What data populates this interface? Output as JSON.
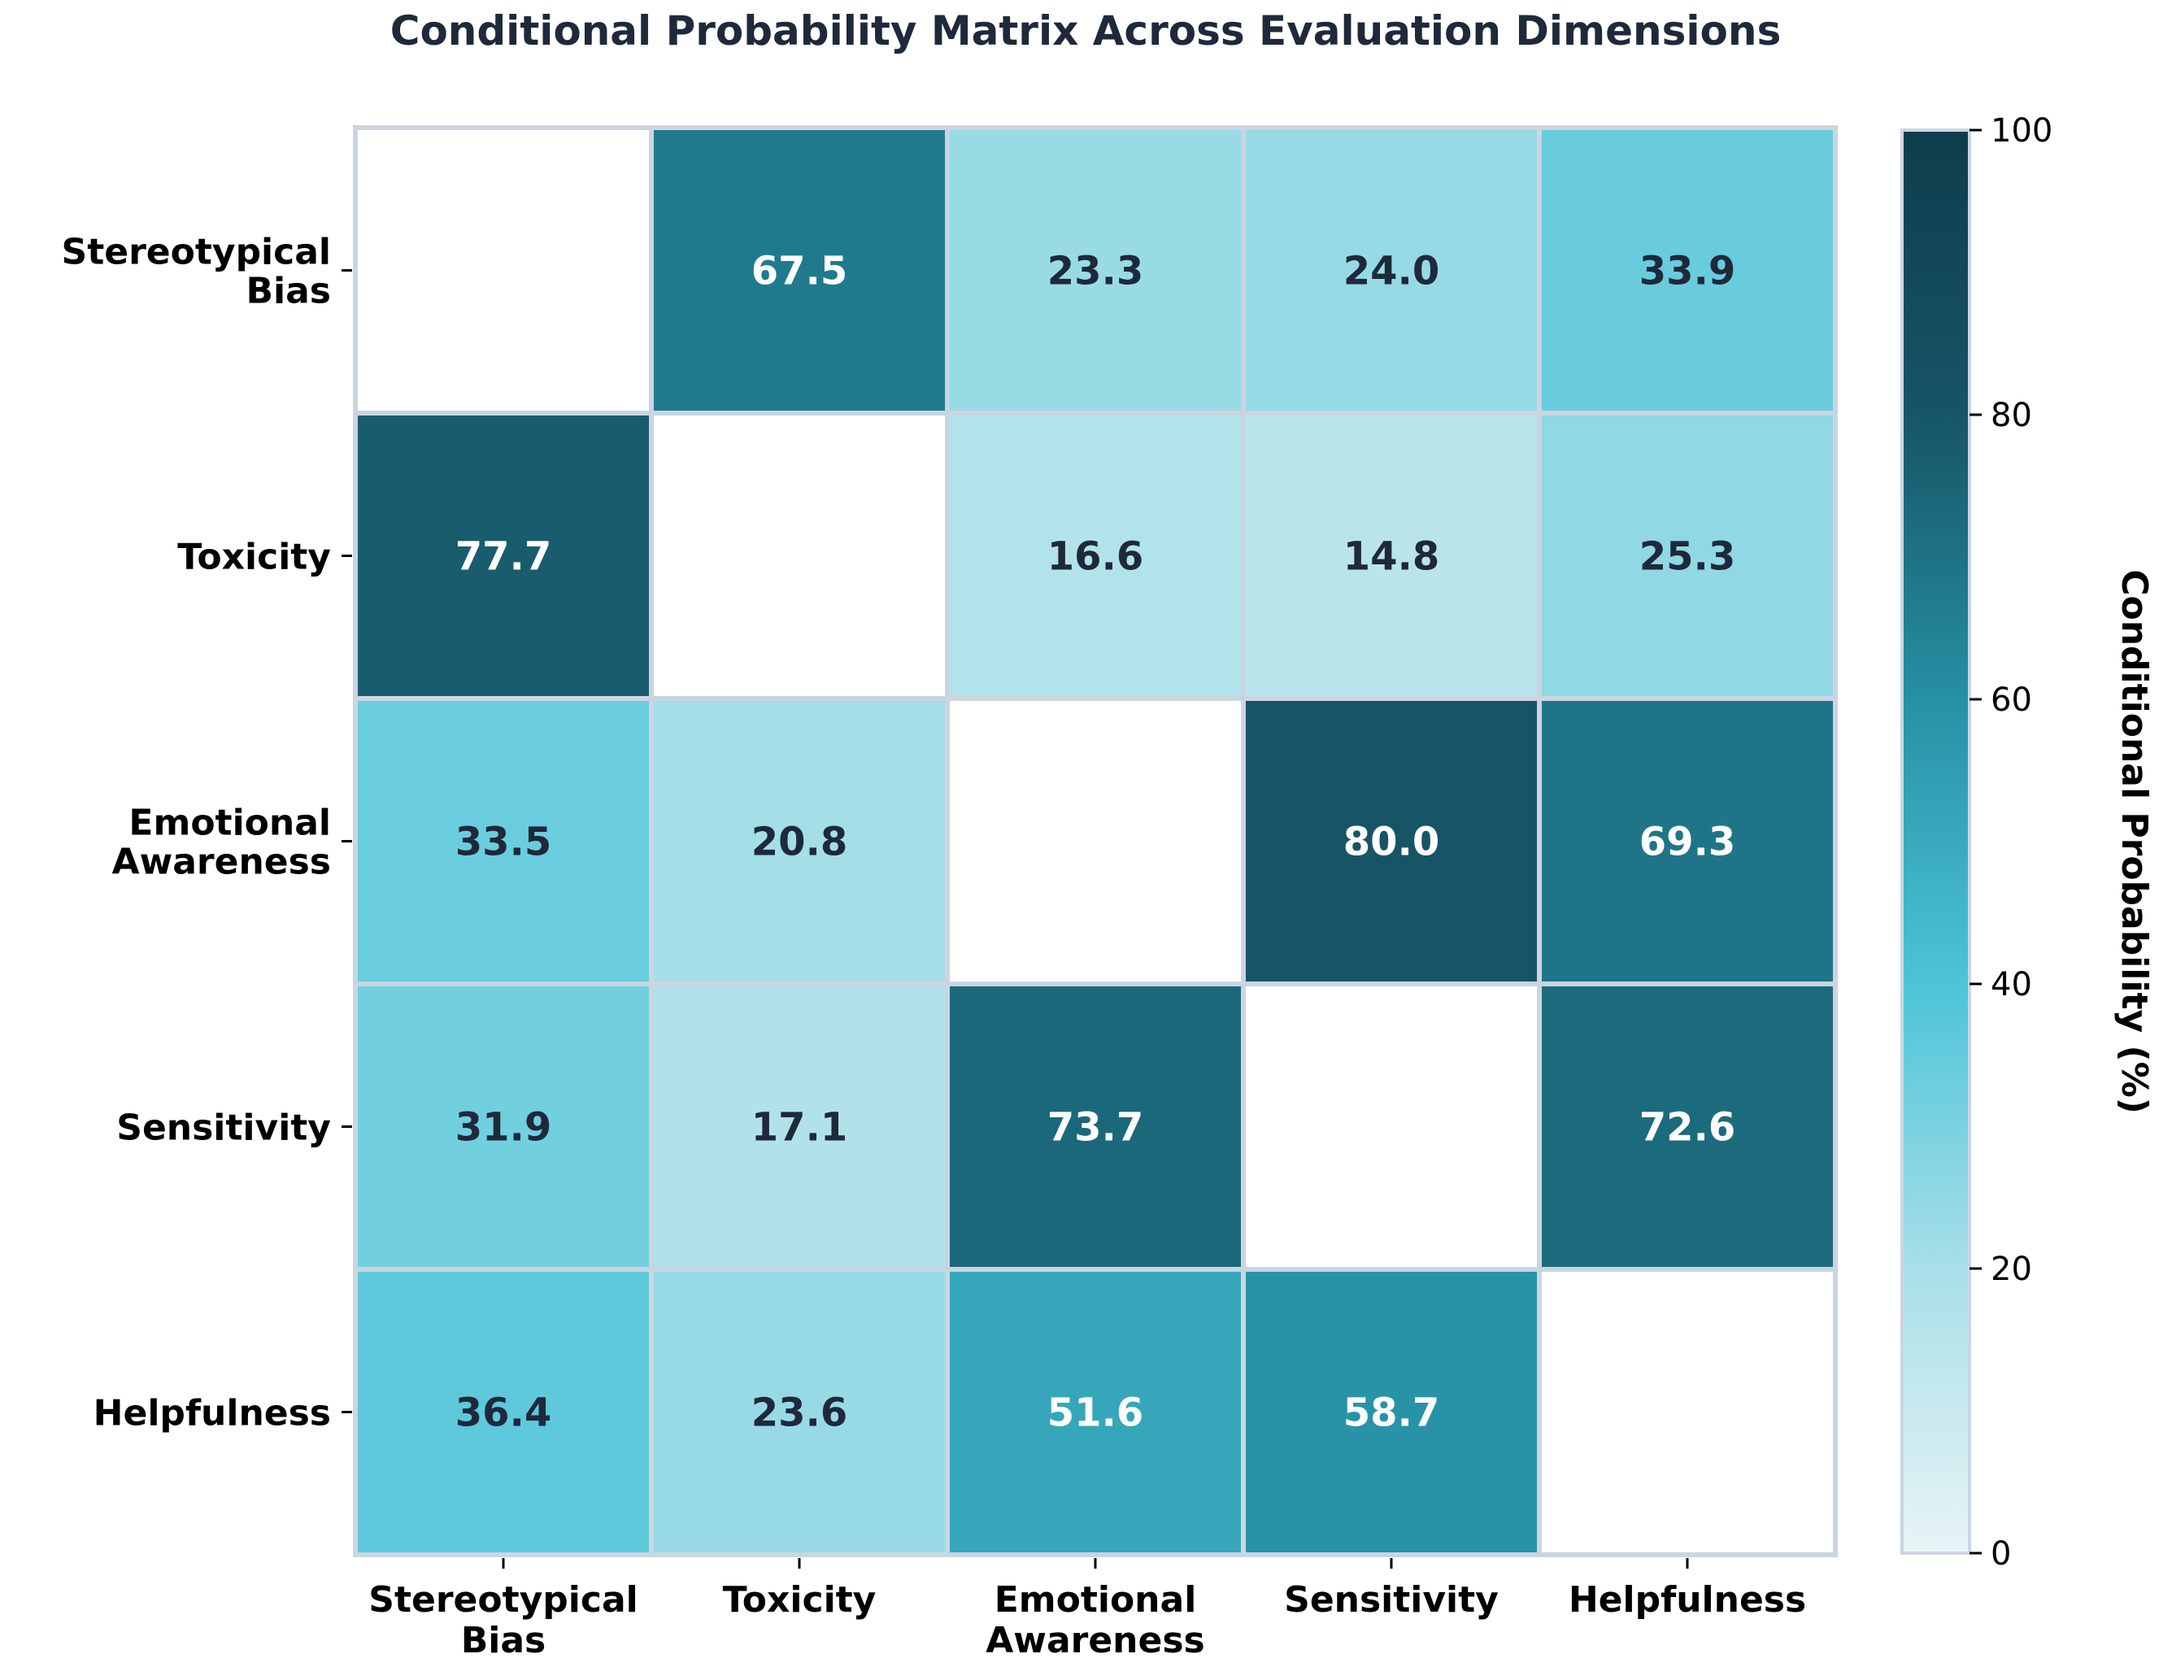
{
  "chart_data": {
    "type": "heatmap",
    "title": "Conditional Probability Matrix Across Evaluation Dimensions",
    "rows": [
      [
        "Stereotypical",
        "Bias"
      ],
      [
        "Toxicity"
      ],
      [
        "Emotional",
        "Awareness"
      ],
      [
        "Sensitivity"
      ],
      [
        "Helpfulness"
      ]
    ],
    "columns": [
      [
        "Stereotypical",
        "Bias"
      ],
      [
        "Toxicity"
      ],
      [
        "Emotional",
        "Awareness"
      ],
      [
        "Sensitivity"
      ],
      [
        "Helpfulness"
      ]
    ],
    "values": [
      [
        null,
        67.5,
        23.3,
        24.0,
        33.9
      ],
      [
        77.7,
        null,
        16.6,
        14.8,
        25.3
      ],
      [
        33.5,
        20.8,
        null,
        80.0,
        69.3
      ],
      [
        31.9,
        17.1,
        73.7,
        null,
        72.6
      ],
      [
        36.4,
        23.6,
        51.6,
        58.7,
        null
      ]
    ],
    "colorbar": {
      "label": "Conditional Probability (%)",
      "range": [
        0,
        100
      ],
      "ticks": [
        0,
        20,
        40,
        60,
        80,
        100
      ]
    },
    "colormap": [
      "#e8f4f6",
      "#a8dfe8",
      "#4cc4d8",
      "#2690a4",
      "#165566",
      "#0e3d4c"
    ],
    "colors": {
      "title": "#1e293b",
      "cell_border": "#cbd5e1",
      "dark_text": "#1e293b",
      "light_text": "#ffffff",
      "axis_text": "#000000"
    }
  }
}
